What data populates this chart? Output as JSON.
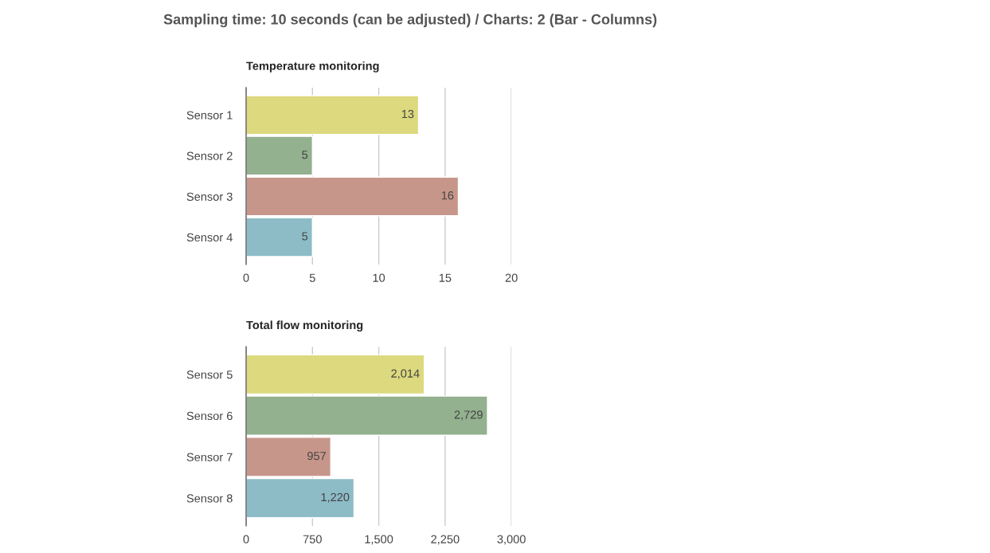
{
  "chart_data": [
    {
      "type": "bar",
      "orientation": "horizontal",
      "title": "Temperature monitoring",
      "annotations": [
        "Sampling time: 10 seconds (can be adjusted) / Charts: 2 (Bar - Columns)"
      ],
      "categories": [
        "Sensor 1",
        "Sensor 2",
        "Sensor 3",
        "Sensor 4"
      ],
      "values": [
        13,
        5,
        16,
        5
      ],
      "colors": [
        "#dcd97e",
        "#93b08f",
        "#c7968a",
        "#8dbcc7"
      ],
      "xlim": [
        0,
        20
      ],
      "xticks": [
        0,
        5,
        10,
        15,
        20
      ],
      "grid": "x",
      "data_labels": true
    },
    {
      "type": "bar",
      "orientation": "horizontal",
      "title": "Total flow monitoring",
      "categories": [
        "Sensor 5",
        "Sensor 6",
        "Sensor 7",
        "Sensor 8"
      ],
      "values": [
        2014,
        2729,
        957,
        1220
      ],
      "value_labels": [
        "2,014",
        "2,729",
        "957",
        "1,220"
      ],
      "colors": [
        "#dcd97e",
        "#93b08f",
        "#c7968a",
        "#8dbcc7"
      ],
      "xlim": [
        0,
        3000
      ],
      "xticks": [
        0,
        750,
        {
          "value": 1500,
          "label": "1,500"
        },
        {
          "value": 2250,
          "label": "2,250"
        },
        {
          "value": 3000,
          "label": "3,000"
        }
      ],
      "grid": "x"
    }
  ]
}
